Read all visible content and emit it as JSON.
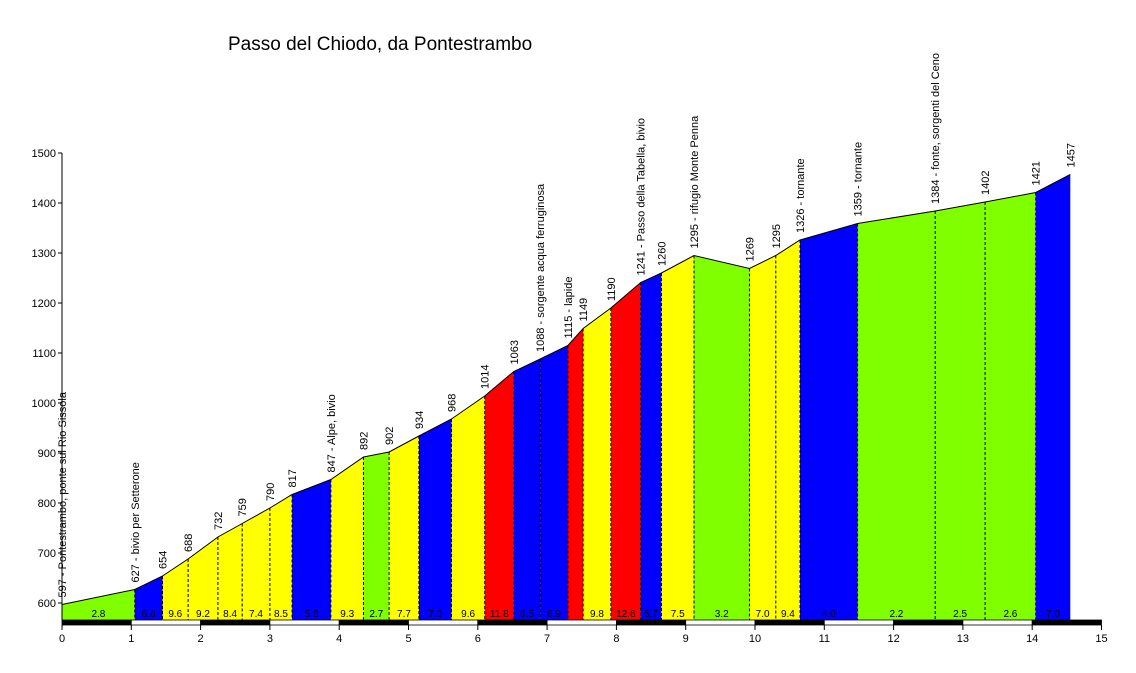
{
  "chart_data": {
    "type": "area",
    "title": "Passo del Chiodo, da Pontestrambo",
    "xlim": [
      0,
      15
    ],
    "ylim": [
      560,
      1500
    ],
    "xticks": [
      0,
      1,
      2,
      3,
      4,
      5,
      6,
      7,
      8,
      9,
      10,
      11,
      12,
      13,
      14,
      15
    ],
    "yticks": [
      600,
      700,
      800,
      900,
      1000,
      1100,
      1200,
      1300,
      1400,
      1500
    ],
    "grid": false,
    "colors": {
      "green": "#80ff00",
      "yellow": "#ffff00",
      "blue": "#0000ff",
      "red": "#ff0000"
    },
    "segments": [
      {
        "x0": 0.0,
        "x1": 1.05,
        "color": "green",
        "label": "2.8"
      },
      {
        "x0": 1.05,
        "x1": 1.45,
        "color": "blue",
        "label": "6.8"
      },
      {
        "x0": 1.45,
        "x1": 1.82,
        "color": "yellow",
        "label": "9.6"
      },
      {
        "x0": 1.82,
        "x1": 2.25,
        "color": "yellow",
        "label": "9.2"
      },
      {
        "x0": 2.25,
        "x1": 2.6,
        "color": "yellow",
        "label": "8.4"
      },
      {
        "x0": 2.6,
        "x1": 3.0,
        "color": "yellow",
        "label": "7.4"
      },
      {
        "x0": 3.0,
        "x1": 3.32,
        "color": "yellow",
        "label": "8.5"
      },
      {
        "x0": 3.32,
        "x1": 3.88,
        "color": "blue",
        "label": "5.8"
      },
      {
        "x0": 3.88,
        "x1": 4.35,
        "color": "yellow",
        "label": "9.3"
      },
      {
        "x0": 4.35,
        "x1": 4.72,
        "color": "green",
        "label": "2.7"
      },
      {
        "x0": 4.72,
        "x1": 5.15,
        "color": "yellow",
        "label": "7.7"
      },
      {
        "x0": 5.15,
        "x1": 5.62,
        "color": "blue",
        "label": "7.0"
      },
      {
        "x0": 5.62,
        "x1": 6.1,
        "color": "yellow",
        "label": "9.6"
      },
      {
        "x0": 6.1,
        "x1": 6.52,
        "color": "red",
        "label": "11.8"
      },
      {
        "x0": 6.52,
        "x1": 6.9,
        "color": "blue",
        "label": "6.5"
      },
      {
        "x0": 6.9,
        "x1": 7.3,
        "color": "blue",
        "label": "6.9"
      },
      {
        "x0": 7.3,
        "x1": 7.52,
        "color": "red",
        "label": ""
      },
      {
        "x0": 7.52,
        "x1": 7.92,
        "color": "yellow",
        "label": "9.8"
      },
      {
        "x0": 7.92,
        "x1": 8.35,
        "color": "red",
        "label": "12.6"
      },
      {
        "x0": 8.35,
        "x1": 8.65,
        "color": "blue",
        "label": "5.7"
      },
      {
        "x0": 8.65,
        "x1": 9.12,
        "color": "yellow",
        "label": "7.5"
      },
      {
        "x0": 9.12,
        "x1": 9.92,
        "color": "green",
        "label": "3.2"
      },
      {
        "x0": 9.92,
        "x1": 10.3,
        "color": "yellow",
        "label": "7.0"
      },
      {
        "x0": 10.3,
        "x1": 10.65,
        "color": "yellow",
        "label": "9.4"
      },
      {
        "x0": 10.65,
        "x1": 11.48,
        "color": "blue",
        "label": "4.0"
      },
      {
        "x0": 11.48,
        "x1": 12.6,
        "color": "green",
        "label": "2.2"
      },
      {
        "x0": 12.6,
        "x1": 13.32,
        "color": "green",
        "label": "2.5"
      },
      {
        "x0": 13.32,
        "x1": 14.05,
        "color": "green",
        "label": "2.6"
      },
      {
        "x0": 14.05,
        "x1": 14.55,
        "color": "blue",
        "label": "7.0"
      }
    ],
    "profile": [
      {
        "x": 0.0,
        "y": 597,
        "label": "597 - Pontestrambo, ponte sul Rio Sissola"
      },
      {
        "x": 1.05,
        "y": 627,
        "label": "627 - bivio per Setterone"
      },
      {
        "x": 1.45,
        "y": 654,
        "label": "654"
      },
      {
        "x": 1.82,
        "y": 688,
        "label": "688"
      },
      {
        "x": 2.25,
        "y": 732,
        "label": "732"
      },
      {
        "x": 2.6,
        "y": 759,
        "label": "759"
      },
      {
        "x": 3.0,
        "y": 790,
        "label": "790"
      },
      {
        "x": 3.32,
        "y": 817,
        "label": "817"
      },
      {
        "x": 3.88,
        "y": 847,
        "label": "847 - Alpe, bivio"
      },
      {
        "x": 4.35,
        "y": 892,
        "label": "892"
      },
      {
        "x": 4.72,
        "y": 902,
        "label": "902"
      },
      {
        "x": 5.15,
        "y": 934,
        "label": "934"
      },
      {
        "x": 5.62,
        "y": 968,
        "label": "968"
      },
      {
        "x": 6.1,
        "y": 1014,
        "label": "1014"
      },
      {
        "x": 6.52,
        "y": 1063,
        "label": "1063"
      },
      {
        "x": 6.9,
        "y": 1088,
        "label": "1088 - sorgente acqua ferruginosa"
      },
      {
        "x": 7.3,
        "y": 1115,
        "label": "1115 - lapide"
      },
      {
        "x": 7.52,
        "y": 1149,
        "label": "1149"
      },
      {
        "x": 7.92,
        "y": 1190,
        "label": "1190"
      },
      {
        "x": 8.35,
        "y": 1241,
        "label": "1241 - Passo della Tabella, bivio"
      },
      {
        "x": 8.65,
        "y": 1260,
        "label": "1260"
      },
      {
        "x": 9.12,
        "y": 1295,
        "label": "1295 - rifugio Monte Penna"
      },
      {
        "x": 9.92,
        "y": 1269,
        "label": "1269"
      },
      {
        "x": 10.3,
        "y": 1295,
        "label": "1295"
      },
      {
        "x": 10.65,
        "y": 1326,
        "label": "1326 - tornante"
      },
      {
        "x": 11.48,
        "y": 1359,
        "label": "1359 - tornante"
      },
      {
        "x": 12.6,
        "y": 1384,
        "label": "1384 - fonte, sorgenti del Ceno"
      },
      {
        "x": 13.32,
        "y": 1402,
        "label": "1402"
      },
      {
        "x": 14.05,
        "y": 1421,
        "label": "1421"
      },
      {
        "x": 14.55,
        "y": 1457,
        "label": "1457"
      }
    ]
  }
}
